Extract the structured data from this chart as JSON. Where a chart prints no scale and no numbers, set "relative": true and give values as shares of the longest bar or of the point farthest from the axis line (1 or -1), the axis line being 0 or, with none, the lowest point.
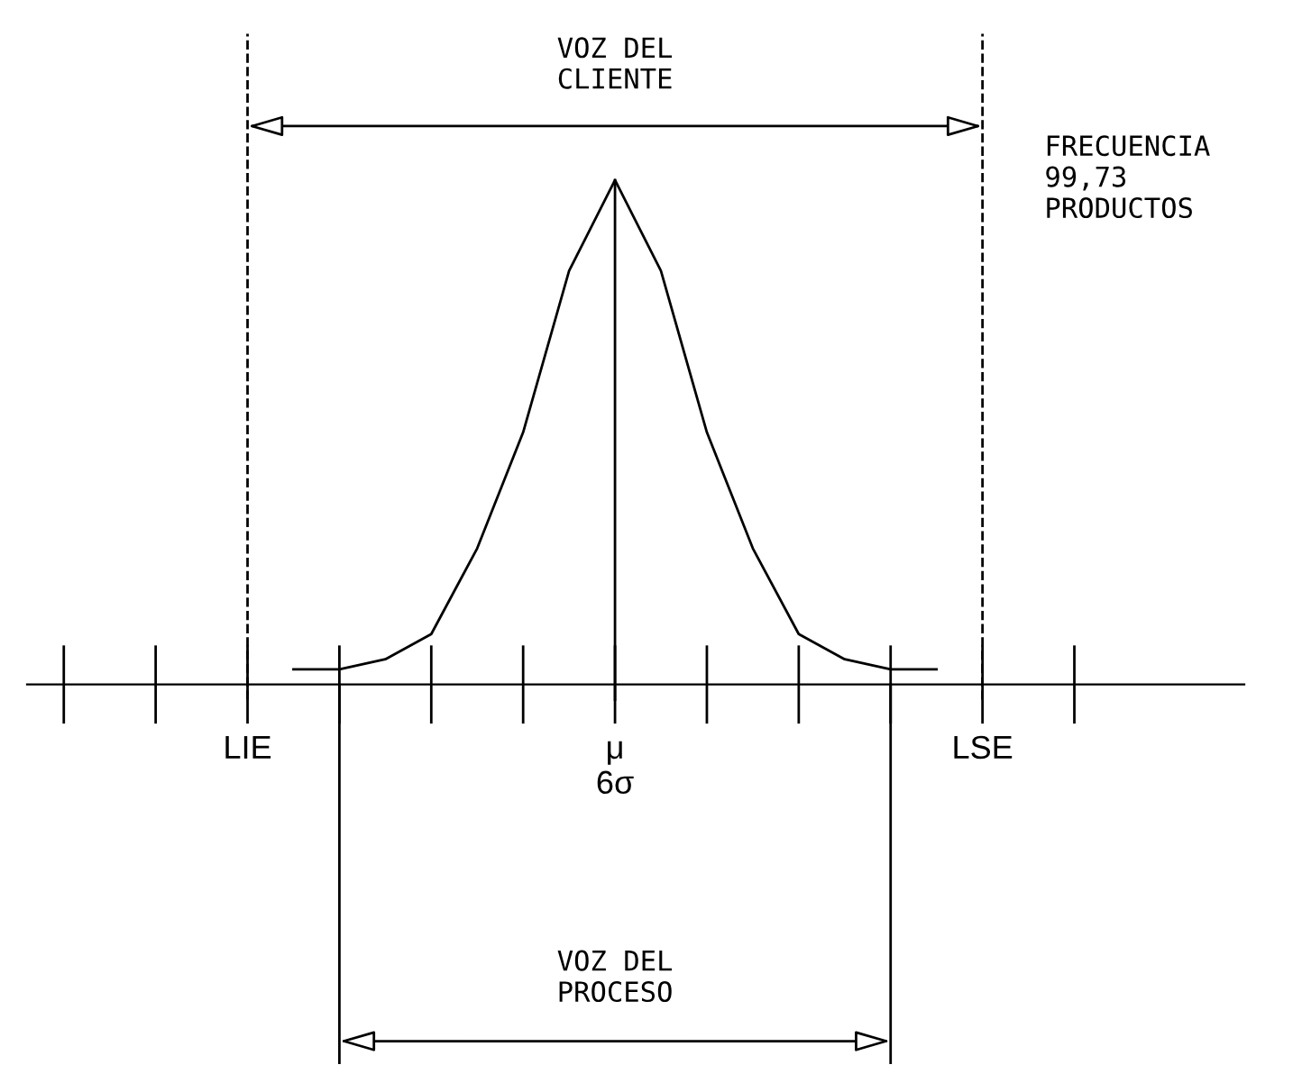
{
  "chart_data": {
    "type": "line",
    "relative": true,
    "categories": [
      null,
      null,
      null,
      null,
      null,
      null,
      null,
      null,
      null,
      null,
      null,
      null,
      null,
      null,
      null,
      null,
      null,
      null,
      null,
      null,
      null,
      null,
      null
    ],
    "series": [
      {
        "color": "#000000",
        "values": [
          null,
          null,
          null,
          null,
          null,
          0.03,
          0.03,
          0.05,
          0.1,
          0.27,
          0.5,
          0.82,
          1,
          0.82,
          0.5,
          0.27,
          0.1,
          0.05,
          0.03,
          0.03,
          null,
          null,
          null
        ]
      }
    ],
    "annotations": [
      "VOZ DEL\nCLIENTE",
      "FRECUENCIA\n99,73\nPRODUCTOS",
      "LIE",
      "μ\n6σ",
      "LSE",
      "VOZ DEL\nPROCESO"
    ],
    "marker": "none",
    "line_style": "solid"
  }
}
